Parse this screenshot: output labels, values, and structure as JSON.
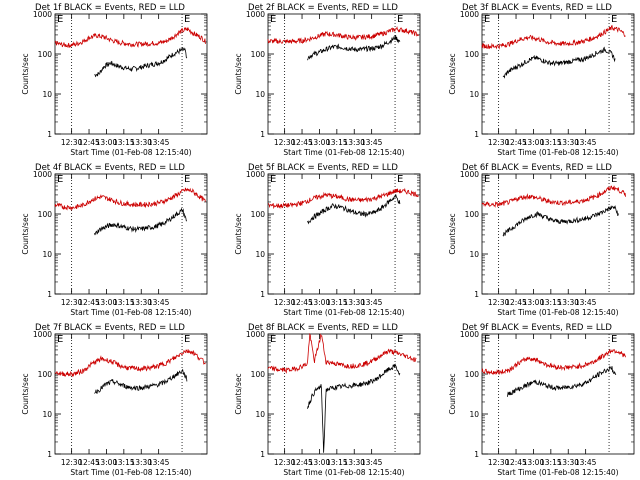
{
  "chart_data": [
    {
      "type": "line",
      "title": "Det 1f BLACK = Events, RED = LLD",
      "xlabel": "Start Time (01-Feb-08 12:15:40)",
      "ylabel": "Counts/sec",
      "x_ticks": [
        "12:30",
        "12:45",
        "13:00",
        "13:15",
        "13:30",
        "13:45"
      ],
      "y_ticks": [
        "1",
        "10",
        "100",
        "1000"
      ],
      "ylim": [
        1,
        1000
      ],
      "y_scale": "log",
      "flag_label": "E",
      "series": [
        {
          "color": "#000000",
          "x_minutes": [
            34,
            38,
            42,
            48,
            54,
            60,
            66,
            72,
            78,
            84,
            90,
            96,
            102,
            108,
            112,
            114
          ],
          "values": [
            30,
            32,
            48,
            60,
            50,
            45,
            42,
            45,
            50,
            55,
            60,
            75,
            100,
            120,
            130,
            60
          ]
        },
        {
          "color": "#cc0000",
          "x_minutes": [
            0,
            6,
            12,
            18,
            24,
            30,
            36,
            42,
            48,
            54,
            60,
            66,
            72,
            78,
            84,
            90,
            96,
            102,
            108,
            114,
            120,
            126,
            130
          ],
          "values": [
            190,
            170,
            165,
            175,
            205,
            260,
            290,
            265,
            225,
            195,
            185,
            175,
            175,
            180,
            185,
            190,
            210,
            270,
            360,
            420,
            320,
            260,
            200
          ]
        }
      ]
    },
    {
      "type": "line",
      "title": "Det 2f BLACK = Events, RED = LLD",
      "xlabel": "Start Time (01-Feb-08 12:15:40)",
      "ylabel": "Counts/sec",
      "x_ticks": [
        "12:30",
        "12:45",
        "13:00",
        "13:15",
        "13:30",
        "13:45"
      ],
      "y_ticks": [
        "1",
        "10",
        "100",
        "1000"
      ],
      "ylim": [
        1,
        1000
      ],
      "y_scale": "log",
      "flag_label": "E",
      "series": [
        {
          "color": "#000000",
          "x_minutes": [
            34,
            38,
            44,
            50,
            56,
            62,
            68,
            74,
            80,
            86,
            92,
            98,
            104,
            110,
            114
          ],
          "values": [
            80,
            95,
            110,
            130,
            150,
            150,
            140,
            130,
            130,
            135,
            140,
            160,
            200,
            260,
            200
          ]
        },
        {
          "color": "#cc0000",
          "x_minutes": [
            0,
            10,
            20,
            30,
            40,
            50,
            60,
            70,
            80,
            90,
            100,
            110,
            120,
            130
          ],
          "values": [
            210,
            205,
            205,
            215,
            260,
            320,
            300,
            260,
            260,
            280,
            330,
            420,
            380,
            300
          ]
        }
      ]
    },
    {
      "type": "line",
      "title": "Det 3f BLACK = Events, RED = LLD",
      "xlabel": "Start Time (01-Feb-08 12:15:40)",
      "ylabel": "Counts/sec",
      "x_ticks": [
        "12:30",
        "12:45",
        "13:00",
        "13:15",
        "13:30",
        "13:45"
      ],
      "y_ticks": [
        "1",
        "10",
        "100",
        "1000"
      ],
      "ylim": [
        1,
        1000
      ],
      "y_scale": "log",
      "flag_label": "E",
      "series": [
        {
          "color": "#000000",
          "x_minutes": [
            18,
            22,
            28,
            34,
            40,
            46,
            52,
            58,
            64,
            70,
            76,
            82,
            88,
            94,
            100,
            106,
            112,
            115
          ],
          "values": [
            25,
            35,
            45,
            55,
            70,
            80,
            70,
            60,
            58,
            60,
            65,
            70,
            75,
            90,
            110,
            130,
            100,
            70
          ]
        },
        {
          "color": "#cc0000",
          "x_minutes": [
            0,
            8,
            16,
            24,
            32,
            40,
            48,
            56,
            64,
            72,
            80,
            88,
            96,
            104,
            112,
            118,
            124
          ],
          "values": [
            160,
            155,
            160,
            180,
            230,
            260,
            240,
            200,
            185,
            180,
            190,
            210,
            250,
            330,
            450,
            400,
            300
          ]
        }
      ]
    },
    {
      "type": "line",
      "title": "Det 4f BLACK = Events, RED = LLD",
      "xlabel": "Start Time (01-Feb-08 12:15:40)",
      "ylabel": "Counts/sec",
      "x_ticks": [
        "12:30",
        "12:45",
        "13:00",
        "13:15",
        "13:30",
        "13:45"
      ],
      "y_ticks": [
        "1",
        "10",
        "100",
        "1000"
      ],
      "ylim": [
        1,
        1000
      ],
      "y_scale": "log",
      "flag_label": "E",
      "series": [
        {
          "color": "#000000",
          "x_minutes": [
            34,
            38,
            44,
            50,
            56,
            62,
            68,
            74,
            80,
            86,
            92,
            98,
            104,
            110,
            114
          ],
          "values": [
            30,
            40,
            48,
            55,
            50,
            45,
            42,
            42,
            45,
            48,
            55,
            70,
            95,
            125,
            60
          ]
        },
        {
          "color": "#cc0000",
          "x_minutes": [
            0,
            8,
            16,
            24,
            32,
            40,
            48,
            56,
            64,
            72,
            80,
            88,
            96,
            104,
            112,
            118,
            124,
            130
          ],
          "values": [
            170,
            150,
            145,
            165,
            230,
            270,
            230,
            190,
            175,
            170,
            175,
            185,
            220,
            290,
            400,
            380,
            280,
            200
          ]
        }
      ]
    },
    {
      "type": "line",
      "title": "Det 5f BLACK = Events, RED = LLD",
      "xlabel": "Start Time (01-Feb-08 12:15:40)",
      "ylabel": "Counts/sec",
      "x_ticks": [
        "12:30",
        "12:45",
        "13:00",
        "13:15",
        "13:30",
        "13:45"
      ],
      "y_ticks": [
        "1",
        "10",
        "100",
        "1000"
      ],
      "ylim": [
        1,
        1000
      ],
      "y_scale": "log",
      "flag_label": "E",
      "series": [
        {
          "color": "#000000",
          "x_minutes": [
            34,
            38,
            44,
            50,
            56,
            62,
            68,
            74,
            80,
            86,
            92,
            98,
            104,
            110,
            114
          ],
          "values": [
            60,
            80,
            100,
            130,
            160,
            150,
            130,
            110,
            100,
            100,
            110,
            140,
            200,
            280,
            180
          ]
        },
        {
          "color": "#cc0000",
          "x_minutes": [
            0,
            10,
            20,
            30,
            40,
            50,
            60,
            70,
            80,
            90,
            100,
            110,
            120,
            130
          ],
          "values": [
            165,
            160,
            165,
            190,
            250,
            300,
            270,
            230,
            220,
            240,
            290,
            380,
            360,
            300
          ]
        }
      ]
    },
    {
      "type": "line",
      "title": "Det 6f BLACK = Events, RED = LLD",
      "xlabel": "Start Time (01-Feb-08 12:15:40)",
      "ylabel": "Counts/sec",
      "x_ticks": [
        "12:30",
        "12:45",
        "13:00",
        "13:15",
        "13:30",
        "13:45"
      ],
      "y_ticks": [
        "1",
        "10",
        "100",
        "1000"
      ],
      "ylim": [
        1,
        1000
      ],
      "y_scale": "log",
      "flag_label": "E",
      "series": [
        {
          "color": "#000000",
          "x_minutes": [
            18,
            24,
            30,
            36,
            42,
            48,
            54,
            60,
            66,
            72,
            78,
            84,
            90,
            96,
            102,
            108,
            114,
            118
          ],
          "values": [
            30,
            40,
            55,
            70,
            90,
            100,
            85,
            70,
            65,
            65,
            68,
            72,
            78,
            90,
            105,
            130,
            150,
            90
          ]
        },
        {
          "color": "#cc0000",
          "x_minutes": [
            0,
            8,
            16,
            24,
            32,
            40,
            48,
            56,
            64,
            72,
            80,
            88,
            96,
            104,
            112,
            118,
            124
          ],
          "values": [
            180,
            170,
            175,
            200,
            250,
            280,
            250,
            210,
            195,
            190,
            200,
            220,
            260,
            340,
            470,
            400,
            300
          ]
        }
      ]
    },
    {
      "type": "line",
      "title": "Det 7f BLACK = Events, RED = LLD",
      "xlabel": "Start Time (01-Feb-08 12:15:40)",
      "ylabel": "Counts/sec",
      "x_ticks": [
        "12:30",
        "12:45",
        "13:00",
        "13:15",
        "13:30",
        "13:45"
      ],
      "y_ticks": [
        "1",
        "10",
        "100",
        "1000"
      ],
      "ylim": [
        1,
        1000
      ],
      "y_scale": "log",
      "flag_label": "E",
      "series": [
        {
          "color": "#000000",
          "x_minutes": [
            34,
            38,
            44,
            50,
            56,
            62,
            68,
            74,
            80,
            86,
            92,
            98,
            104,
            110,
            114
          ],
          "values": [
            35,
            40,
            55,
            65,
            55,
            48,
            45,
            45,
            48,
            52,
            58,
            72,
            95,
            120,
            70
          ]
        },
        {
          "color": "#cc0000",
          "x_minutes": [
            0,
            8,
            16,
            24,
            32,
            40,
            48,
            56,
            64,
            72,
            80,
            88,
            96,
            104,
            112,
            118,
            124,
            130
          ],
          "values": [
            110,
            100,
            100,
            120,
            180,
            240,
            210,
            160,
            140,
            135,
            140,
            155,
            190,
            260,
            380,
            360,
            260,
            180
          ]
        }
      ]
    },
    {
      "type": "line",
      "title": "Det 8f BLACK = Events, RED = LLD",
      "xlabel": "Start Time (01-Feb-08 12:15:40)",
      "ylabel": "Counts/sec",
      "x_ticks": [
        "12:30",
        "12:45",
        "13:00",
        "13:15",
        "13:30",
        "13:45"
      ],
      "y_ticks": [
        "1",
        "10",
        "100",
        "1000"
      ],
      "ylim": [
        1,
        1000
      ],
      "y_scale": "log",
      "flag_label": "E",
      "series": [
        {
          "color": "#000000",
          "x_minutes": [
            34,
            36,
            38,
            40,
            42,
            44,
            46,
            48,
            50,
            56,
            62,
            68,
            74,
            80,
            86,
            92,
            98,
            104,
            110,
            114
          ],
          "values": [
            15,
            20,
            28,
            35,
            40,
            45,
            50,
            1,
            40,
            45,
            48,
            50,
            52,
            55,
            60,
            70,
            95,
            130,
            160,
            90
          ]
        },
        {
          "color": "#cc0000",
          "x_minutes": [
            0,
            8,
            16,
            24,
            30,
            34,
            36,
            40,
            46,
            50,
            56,
            62,
            68,
            74,
            80,
            86,
            92,
            98,
            104,
            110,
            116,
            122,
            128
          ],
          "values": [
            140,
            130,
            125,
            135,
            160,
            180,
            1000,
            210,
            1000,
            200,
            190,
            170,
            160,
            160,
            170,
            190,
            230,
            300,
            380,
            340,
            300,
            260,
            220
          ]
        }
      ]
    },
    {
      "type": "line",
      "title": "Det 9f BLACK = Events, RED = LLD",
      "xlabel": "Start Time (01-Feb-08 12:15:40)",
      "ylabel": "Counts/sec",
      "x_ticks": [
        "12:30",
        "12:45",
        "13:00",
        "13:15",
        "13:30",
        "13:45"
      ],
      "y_ticks": [
        "1",
        "10",
        "100",
        "1000"
      ],
      "ylim": [
        1,
        1000
      ],
      "y_scale": "log",
      "flag_label": "E",
      "series": [
        {
          "color": "#000000",
          "x_minutes": [
            22,
            28,
            34,
            40,
            46,
            52,
            58,
            64,
            70,
            76,
            82,
            88,
            94,
            100,
            106,
            112,
            116
          ],
          "values": [
            30,
            38,
            45,
            55,
            65,
            55,
            48,
            45,
            45,
            48,
            52,
            58,
            72,
            95,
            120,
            140,
            80
          ]
        },
        {
          "color": "#cc0000",
          "x_minutes": [
            0,
            8,
            16,
            24,
            32,
            40,
            48,
            56,
            64,
            72,
            80,
            88,
            96,
            104,
            112,
            118,
            124
          ],
          "values": [
            120,
            110,
            110,
            130,
            190,
            250,
            220,
            170,
            150,
            145,
            150,
            165,
            200,
            280,
            400,
            360,
            270
          ]
        }
      ]
    }
  ]
}
